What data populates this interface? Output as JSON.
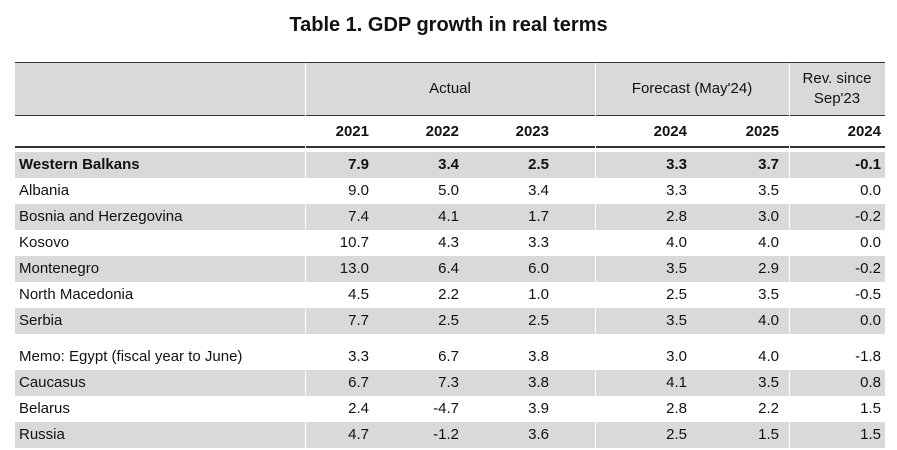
{
  "title": "Table 1. GDP growth in real terms",
  "header": {
    "actual": "Actual",
    "forecast": "Forecast (May'24)",
    "rev_line1": "Rev. since",
    "rev_line2": "Sep'23",
    "years": [
      "2021",
      "2022",
      "2023",
      "2024",
      "2025",
      "2024"
    ]
  },
  "rows_group1": [
    {
      "name": "Western Balkans",
      "values": [
        "7.9",
        "3.4",
        "2.5",
        "3.3",
        "3.7",
        "-0.1"
      ]
    },
    {
      "name": "Albania",
      "values": [
        "9.0",
        "5.0",
        "3.4",
        "3.3",
        "3.5",
        "0.0"
      ]
    },
    {
      "name": "Bosnia and Herzegovina",
      "values": [
        "7.4",
        "4.1",
        "1.7",
        "2.8",
        "3.0",
        "-0.2"
      ]
    },
    {
      "name": "Kosovo",
      "values": [
        "10.7",
        "4.3",
        "3.3",
        "4.0",
        "4.0",
        "0.0"
      ]
    },
    {
      "name": "Montenegro",
      "values": [
        "13.0",
        "6.4",
        "6.0",
        "3.5",
        "2.9",
        "-0.2"
      ]
    },
    {
      "name": "North Macedonia",
      "values": [
        "4.5",
        "2.2",
        "1.0",
        "2.5",
        "3.5",
        "-0.5"
      ]
    },
    {
      "name": "Serbia",
      "values": [
        "7.7",
        "2.5",
        "2.5",
        "3.5",
        "4.0",
        "0.0"
      ]
    }
  ],
  "rows_group2": [
    {
      "name": "Memo: Egypt (fiscal year to June)",
      "values": [
        "3.3",
        "6.7",
        "3.8",
        "3.0",
        "4.0",
        "-1.8"
      ]
    },
    {
      "name": "Caucasus",
      "values": [
        "6.7",
        "7.3",
        "3.8",
        "4.1",
        "3.5",
        "0.8"
      ]
    },
    {
      "name": "Belarus",
      "values": [
        "2.4",
        "-4.7",
        "3.9",
        "2.8",
        "2.2",
        "1.5"
      ]
    },
    {
      "name": "Russia",
      "values": [
        "4.7",
        "-1.2",
        "3.6",
        "2.5",
        "1.5",
        "1.5"
      ]
    }
  ]
}
